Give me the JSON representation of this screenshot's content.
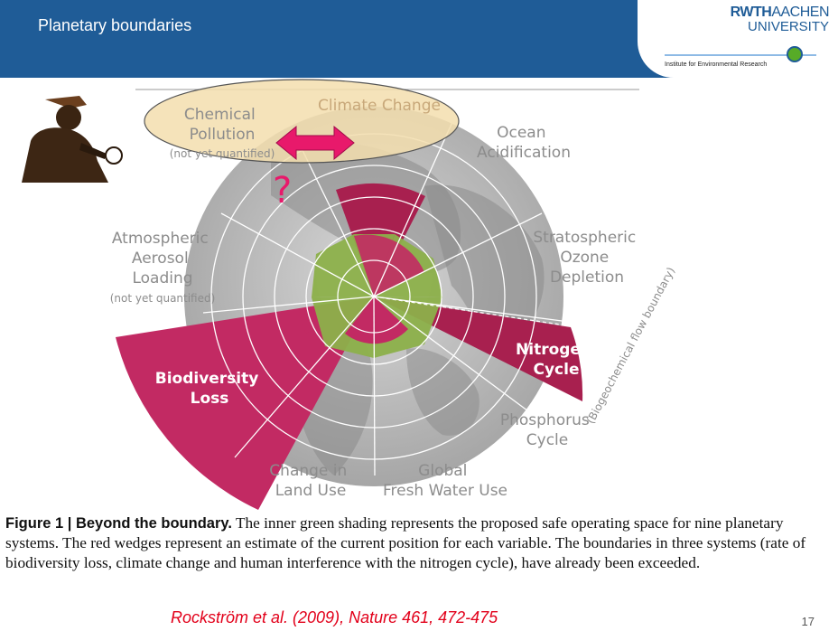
{
  "header": {
    "title": "Planetary boundaries",
    "logo_rwth_bold": "RWTH",
    "logo_rwth_light": "AACHEN",
    "logo_university": "UNIVERSITY",
    "logo_institute": "Institute for Environmental Research"
  },
  "diagram": {
    "labels": {
      "chemical_pollution": [
        "Chemical",
        "Pollution"
      ],
      "chemical_note": "(not yet quantified)",
      "climate_change": "Climate Change",
      "ocean_acidification": [
        "Ocean",
        "Acidification"
      ],
      "stratospheric_ozone": [
        "Stratospheric",
        "Ozone",
        "Depletion"
      ],
      "atmospheric_aerosol": [
        "Atmospheric",
        "Aerosol",
        "Loading"
      ],
      "aerosol_note": "(not yet quantified)",
      "nitrogen_cycle": [
        "Nitrogen",
        "Cycle"
      ],
      "biodiversity_loss": [
        "Biodiversity",
        "Loss"
      ],
      "phosphorus_cycle": [
        "Phosphorus",
        "Cycle"
      ],
      "biogeochemical_note": "(Biogeochemical flow boundary)",
      "land_use": [
        "Change in",
        "Land Use"
      ],
      "fresh_water": [
        "Global",
        "Fresh Water Use"
      ]
    },
    "question_mark": "?",
    "colors": {
      "globe": "#b9b9b9",
      "safe_zone": "#8cb04a",
      "wedge": "#c22a63",
      "highlight_ellipse": "#f3deae",
      "arrow": "#e8196b",
      "question": "#e8196b"
    }
  },
  "caption": {
    "lead": "Figure 1 | Beyond the boundary.",
    "text": "The inner green shading represents the proposed safe operating space for nine planetary systems. The red wedges represent an estimate of the current position for each variable. The boundaries in three systems (rate of biodiversity loss, climate change and human interference with the nitrogen cycle), have already been exceeded."
  },
  "citation": "Rockström et al. (2009), Nature 461, 472-475",
  "page_number": "17"
}
